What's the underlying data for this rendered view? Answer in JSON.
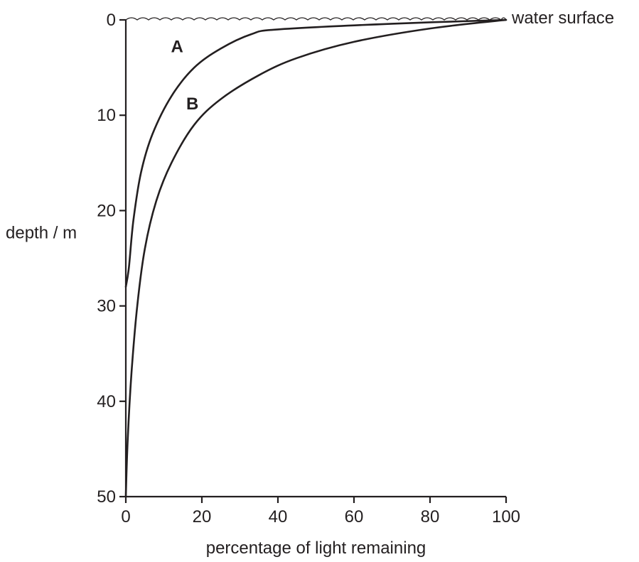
{
  "chart_data": {
    "type": "line",
    "xlabel": "percentage of light remaining",
    "ylabel": "depth / m",
    "xlim": [
      0,
      100
    ],
    "ylim": [
      0,
      50
    ],
    "y_inverted": true,
    "x_ticks": [
      "0",
      "20",
      "40",
      "60",
      "80",
      "100"
    ],
    "y_ticks": [
      "0",
      "10",
      "20",
      "30",
      "40",
      "50"
    ],
    "grid": false,
    "annotations": {
      "surface": "water surface"
    },
    "series": [
      {
        "name": "A",
        "points": [
          [
            100,
            0
          ],
          [
            70,
            0.4
          ],
          [
            40,
            1
          ],
          [
            33,
            1.5
          ],
          [
            25,
            3
          ],
          [
            18,
            5
          ],
          [
            12,
            8
          ],
          [
            7,
            12
          ],
          [
            4,
            16
          ],
          [
            2,
            21
          ],
          [
            0.8,
            26
          ],
          [
            0,
            28
          ]
        ]
      },
      {
        "name": "B",
        "points": [
          [
            100,
            0
          ],
          [
            80,
            0.9
          ],
          [
            60,
            2.3
          ],
          [
            45,
            4
          ],
          [
            35,
            5.8
          ],
          [
            25,
            8.3
          ],
          [
            18,
            11
          ],
          [
            12,
            15
          ],
          [
            8,
            19
          ],
          [
            5,
            24
          ],
          [
            3,
            30
          ],
          [
            1.5,
            37
          ],
          [
            0.5,
            44
          ],
          [
            0,
            50
          ]
        ]
      }
    ]
  }
}
